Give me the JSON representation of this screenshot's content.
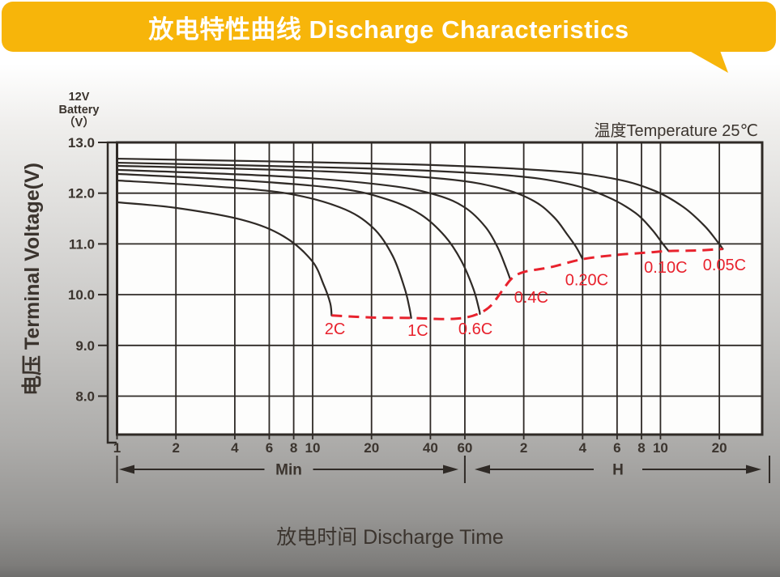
{
  "banner": {
    "title": "放电特性曲线 Discharge Characteristics",
    "bg_color": "#F7B50A",
    "text_color": "#ffffff"
  },
  "chart_data": {
    "type": "line",
    "title": "放电特性曲线 Discharge Characteristics",
    "xlabel": "放电时间 Discharge Time",
    "ylabel": "电压 Terminal Voltage(V)",
    "annotation": "温度Temperature 25℃",
    "y_axis_header_lines": [
      "12V",
      "Battery",
      "（V）"
    ],
    "x_scale": "log",
    "grid": true,
    "ylim": [
      7.25,
      13.0
    ],
    "y_ticks": [
      {
        "v": 13.0,
        "label": "13.0"
      },
      {
        "v": 12.0,
        "label": "12.0"
      },
      {
        "v": 11.0,
        "label": "11.0"
      },
      {
        "v": 10.0,
        "label": "10.0"
      },
      {
        "v": 9.0,
        "label": "9.0"
      },
      {
        "v": 8.0,
        "label": "8.0"
      }
    ],
    "x_unit_sections": [
      {
        "unit": "Min",
        "ticks": [
          {
            "t": 1,
            "label": "1"
          },
          {
            "t": 2,
            "label": "2"
          },
          {
            "t": 4,
            "label": "4"
          },
          {
            "t": 6,
            "label": "6"
          },
          {
            "t": 8,
            "label": "8"
          },
          {
            "t": 10,
            "label": "10"
          },
          {
            "t": 20,
            "label": "20"
          },
          {
            "t": 40,
            "label": "40"
          },
          {
            "t": 60,
            "label": "60"
          }
        ]
      },
      {
        "unit": "H",
        "ticks": [
          {
            "t": 2,
            "label": "2"
          },
          {
            "t": 4,
            "label": "4"
          },
          {
            "t": 6,
            "label": "6"
          },
          {
            "t": 8,
            "label": "8"
          },
          {
            "t": 10,
            "label": "10"
          },
          {
            "t": 20,
            "label": "20"
          }
        ]
      }
    ],
    "curve_color": "#2f2a26",
    "series": [
      {
        "name": "0.05C",
        "label": "0.05C",
        "label_at": [
          1274,
          10.59
        ],
        "points": [
          [
            1,
            12.68
          ],
          [
            30,
            12.57
          ],
          [
            164,
            12.44
          ],
          [
            352,
            12.28
          ],
          [
            566,
            12.04
          ],
          [
            790,
            11.72
          ],
          [
            1005,
            11.36
          ],
          [
            1160,
            11.07
          ],
          [
            1250,
            10.9
          ]
        ]
      },
      {
        "name": "0.10C",
        "label": "0.10C",
        "label_at": [
          638,
          10.54
        ],
        "points": [
          [
            1,
            12.6
          ],
          [
            18,
            12.49
          ],
          [
            93,
            12.36
          ],
          [
            199,
            12.19
          ],
          [
            320,
            11.93
          ],
          [
            447,
            11.61
          ],
          [
            541,
            11.29
          ],
          [
            612,
            11.02
          ],
          [
            660,
            10.86
          ]
        ]
      },
      {
        "name": "0.20C",
        "label": "0.20C",
        "label_at": [
          252,
          10.3
        ],
        "points": [
          [
            1,
            12.54
          ],
          [
            11.4,
            12.43
          ],
          [
            47.5,
            12.28
          ],
          [
            92.6,
            12.09
          ],
          [
            136,
            11.84
          ],
          [
            172,
            11.52
          ],
          [
            199,
            11.2
          ],
          [
            223,
            10.93
          ],
          [
            240,
            10.7
          ]
        ]
      },
      {
        "name": "0.4C",
        "label": "0.4C",
        "label_at": [
          131,
          9.95
        ],
        "points": [
          [
            1,
            12.46
          ],
          [
            7,
            12.33
          ],
          [
            24.4,
            12.15
          ],
          [
            43.2,
            11.96
          ],
          [
            60.4,
            11.71
          ],
          [
            76.6,
            11.33
          ],
          [
            88.3,
            10.93
          ],
          [
            97.2,
            10.54
          ],
          [
            102,
            10.32
          ]
        ]
      },
      {
        "name": "0.6C",
        "label": "0.6C",
        "label_at": [
          68,
          9.33
        ],
        "points": [
          [
            1,
            12.38
          ],
          [
            4.4,
            12.25
          ],
          [
            13.8,
            12.09
          ],
          [
            24.4,
            11.87
          ],
          [
            35.7,
            11.58
          ],
          [
            47.5,
            11.15
          ],
          [
            57.5,
            10.67
          ],
          [
            66.4,
            10.11
          ],
          [
            70.9,
            9.71
          ],
          [
            71.6,
            9.62
          ]
        ]
      },
      {
        "name": "1C",
        "label": "1C",
        "label_at": [
          34.5,
          9.3
        ],
        "points": [
          [
            1,
            12.25
          ],
          [
            2.7,
            12.15
          ],
          [
            7,
            12.01
          ],
          [
            13.8,
            11.72
          ],
          [
            20.2,
            11.33
          ],
          [
            25.6,
            10.77
          ],
          [
            29.5,
            10.13
          ],
          [
            31.2,
            9.75
          ],
          [
            31.9,
            9.54
          ]
        ]
      },
      {
        "name": "2C",
        "label": "2C",
        "label_at": [
          13,
          9.33
        ],
        "points": [
          [
            1,
            11.82
          ],
          [
            2,
            11.71
          ],
          [
            4.4,
            11.47
          ],
          [
            7.1,
            11.15
          ],
          [
            9.9,
            10.67
          ],
          [
            11.4,
            10.19
          ],
          [
            12.3,
            9.83
          ],
          [
            12.5,
            9.59
          ]
        ]
      }
    ],
    "envelope": {
      "name": "final-discharge-voltage-line",
      "color": "#E8222D",
      "style": "dashed",
      "points": [
        [
          12.5,
          9.59
        ],
        [
          20.2,
          9.55
        ],
        [
          31.9,
          9.54
        ],
        [
          45.3,
          9.52
        ],
        [
          58.7,
          9.54
        ],
        [
          70.9,
          9.63
        ],
        [
          81.8,
          9.79
        ],
        [
          94.4,
          10.11
        ],
        [
          105,
          10.33
        ],
        [
          121,
          10.45
        ],
        [
          164,
          10.54
        ],
        [
          240,
          10.7
        ],
        [
          352,
          10.78
        ],
        [
          515,
          10.83
        ],
        [
          660,
          10.86
        ],
        [
          914,
          10.87
        ],
        [
          1250,
          10.9
        ]
      ]
    }
  }
}
